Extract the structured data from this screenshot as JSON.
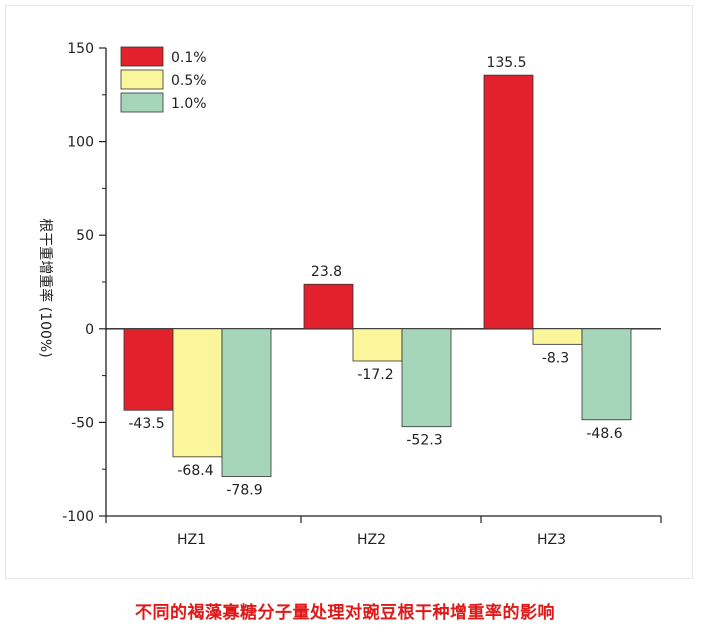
{
  "chart_data": {
    "type": "bar",
    "categories": [
      "HZ1",
      "HZ2",
      "HZ3"
    ],
    "series": [
      {
        "name": "0.1%",
        "values": [
          -43.5,
          23.8,
          135.5
        ]
      },
      {
        "name": "0.5%",
        "values": [
          -68.4,
          -17.2,
          -8.3
        ]
      },
      {
        "name": "1.0%",
        "values": [
          -78.9,
          -52.3,
          -48.6
        ]
      }
    ],
    "ylabel": "根干重增重率 (100%)",
    "ylim": [
      -100,
      150
    ],
    "yticks": [
      -100,
      -50,
      0,
      50,
      100,
      150
    ],
    "legend_position": "top-left",
    "grid": false
  },
  "colors": {
    "series": [
      "#e3212d",
      "#fbf59b",
      "#a6d6b9"
    ],
    "caption": "#e01818"
  },
  "caption": "不同的褐藻寡糖分子量处理对豌豆根干种增重率的影响"
}
